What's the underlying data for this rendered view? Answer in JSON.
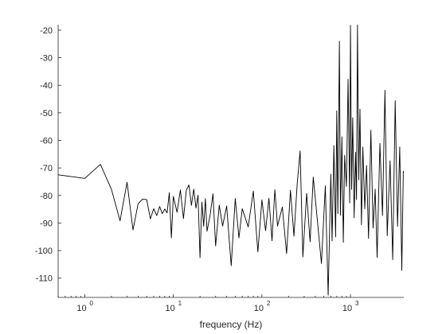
{
  "colors": {
    "line": "#000000",
    "axis": "#262626",
    "background": "#ffffff"
  },
  "chart_data": {
    "type": "line",
    "title": "",
    "xlabel": "frequency (Hz)",
    "ylabel": "",
    "x_scale": "log",
    "xlim": [
      0.5,
      4000
    ],
    "ylim": [
      -117,
      -18
    ],
    "grid": false,
    "legend": "none",
    "x_ticks": [
      {
        "value": 1,
        "base": "10",
        "exponent": "0"
      },
      {
        "value": 10,
        "base": "10",
        "exponent": "1"
      },
      {
        "value": 100,
        "base": "10",
        "exponent": "2"
      },
      {
        "value": 1000,
        "base": "10",
        "exponent": "3"
      }
    ],
    "y_ticks": [
      {
        "value": -20,
        "label": "-20"
      },
      {
        "value": -30,
        "label": "-30"
      },
      {
        "value": -40,
        "label": "-40"
      },
      {
        "value": -50,
        "label": "-50"
      },
      {
        "value": -60,
        "label": "-60"
      },
      {
        "value": -70,
        "label": "-70"
      },
      {
        "value": -80,
        "label": "-80"
      },
      {
        "value": -90,
        "label": "-90"
      },
      {
        "value": -100,
        "label": "-100"
      },
      {
        "value": -110,
        "label": "-110"
      }
    ],
    "series": [
      {
        "x": [
          0.5,
          1,
          1.5,
          2,
          2.5,
          3,
          3.5,
          4,
          4.5,
          5,
          5.5,
          6,
          6.5,
          7,
          7.5,
          8,
          8.5,
          9,
          9.5,
          10,
          11,
          12,
          13,
          14,
          15,
          16,
          17,
          18,
          19,
          20,
          21,
          22,
          23,
          24,
          26,
          28,
          30,
          33,
          36,
          40,
          45,
          50,
          55,
          60,
          70,
          80,
          90,
          100,
          110,
          120,
          130,
          140,
          150,
          170,
          190,
          210,
          230,
          250,
          270,
          290,
          320,
          350,
          380,
          420,
          470,
          520,
          560,
          600,
          620,
          650,
          680,
          700,
          720,
          750,
          770,
          800,
          830,
          860,
          900,
          940,
          980,
          1000,
          1030,
          1060,
          1100,
          1140,
          1170,
          1200,
          1240,
          1280,
          1330,
          1380,
          1450,
          1520,
          1600,
          1700,
          1800,
          1900,
          2000,
          2150,
          2300,
          2450,
          2600,
          2800,
          3000,
          3200,
          3400,
          3600,
          3800,
          3950
        ],
        "y": [
          -72.5,
          -73.8,
          -68.7,
          -77.8,
          -89.2,
          -75.2,
          -92.5,
          -83.0,
          -81.3,
          -81.5,
          -88.5,
          -84.8,
          -87.3,
          -84.0,
          -86.6,
          -84.9,
          -86.3,
          -79.0,
          -95.4,
          -80.3,
          -86.1,
          -78.0,
          -88.4,
          -78.1,
          -76.2,
          -83.6,
          -77.7,
          -84.6,
          -79.9,
          -102.6,
          -82.4,
          -91.2,
          -81.1,
          -93.0,
          -87.2,
          -79.4,
          -98.3,
          -83.5,
          -91.1,
          -83.8,
          -105.5,
          -81.1,
          -95.4,
          -84.8,
          -91.4,
          -78.4,
          -100.5,
          -81.6,
          -92.8,
          -81.0,
          -96.4,
          -77.9,
          -91.1,
          -84.2,
          -101.1,
          -78.1,
          -94.8,
          -76.0,
          -63.8,
          -102.3,
          -79.2,
          -96.8,
          -73.3,
          -88.0,
          -104.7,
          -76.5,
          -116.2,
          -72.3,
          -96.5,
          -61.9,
          -95.0,
          -49.3,
          -86.6,
          -24.0,
          -87.2,
          -58.7,
          -97.0,
          -65.4,
          -76.7,
          -37.8,
          -82.7,
          -18.2,
          -77.8,
          -51.8,
          -88.1,
          -64.3,
          -81.5,
          -18.1,
          -74.3,
          -48.7,
          -90.6,
          -62.4,
          -84.8,
          -69.1,
          -95.6,
          -56.3,
          -91.8,
          -77.7,
          -102.5,
          -61.1,
          -87.3,
          -41.8,
          -94.6,
          -67.4,
          -103.3,
          -45.6,
          -91.2,
          -62.4,
          -107.2,
          -71.2
        ]
      }
    ]
  }
}
